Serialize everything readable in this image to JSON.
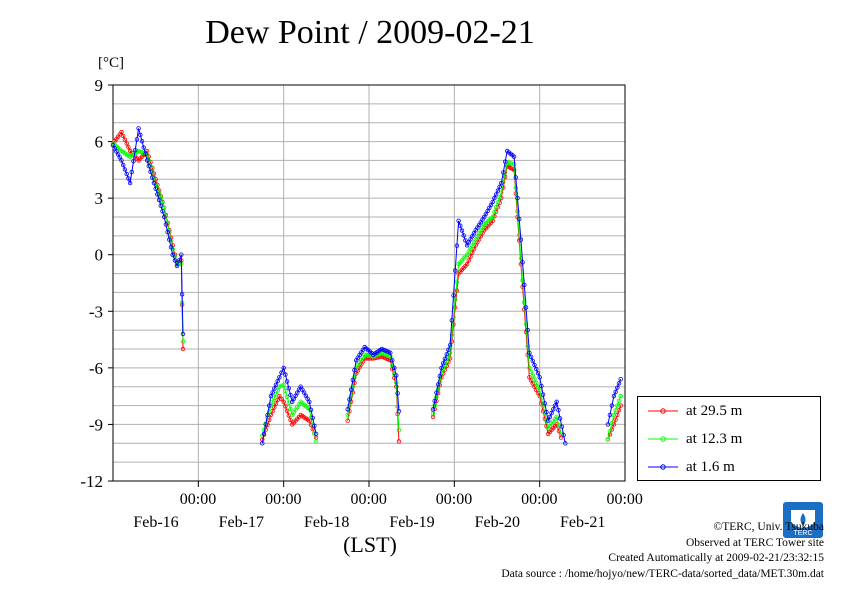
{
  "chart_data": {
    "type": "line",
    "title": "Dew Point / 2009-02-21",
    "ylabel": "[°C]",
    "xlabel": "(LST)",
    "ylim": [
      -12,
      9
    ],
    "yticks": [
      "9",
      "6",
      "3",
      "0",
      "-3",
      "-6",
      "-9",
      "-12"
    ],
    "xticks": [
      {
        "time": "00:00",
        "date": "Feb-16"
      },
      {
        "time": "00:00",
        "date": "Feb-17"
      },
      {
        "time": "00:00",
        "date": "Feb-18"
      },
      {
        "time": "00:00",
        "date": "Feb-19"
      },
      {
        "time": "00:00",
        "date": "Feb-20"
      },
      {
        "time": "00:00",
        "date": "Feb-21"
      }
    ],
    "xlim_days": [
      15.0,
      21.0
    ],
    "grid": true,
    "legend_position": "bottom-right",
    "series": [
      {
        "name": "at 29.5 m",
        "color": "#ff0000",
        "segments": [
          [
            [
              15.0,
              5.9
            ],
            [
              15.1,
              6.5
            ],
            [
              15.2,
              5.5
            ],
            [
              15.3,
              5.0
            ],
            [
              15.4,
              5.5
            ],
            [
              15.5,
              4.0
            ],
            [
              15.6,
              2.5
            ],
            [
              15.7,
              0.5
            ],
            [
              15.75,
              -0.5
            ],
            [
              15.8,
              -0.3
            ],
            [
              15.82,
              -5.0
            ]
          ],
          [
            [
              16.75,
              -9.8
            ],
            [
              16.85,
              -8.5
            ],
            [
              16.95,
              -7.5
            ],
            [
              17.0,
              -7.8
            ],
            [
              17.1,
              -9.0
            ],
            [
              17.2,
              -8.5
            ],
            [
              17.3,
              -8.8
            ],
            [
              17.38,
              -9.7
            ]
          ],
          [
            [
              17.75,
              -8.8
            ],
            [
              17.85,
              -6.3
            ],
            [
              17.95,
              -5.5
            ],
            [
              18.05,
              -5.5
            ],
            [
              18.15,
              -5.4
            ],
            [
              18.25,
              -5.6
            ],
            [
              18.32,
              -7.0
            ],
            [
              18.35,
              -9.9
            ]
          ],
          [
            [
              18.75,
              -8.6
            ],
            [
              18.85,
              -6.5
            ],
            [
              18.95,
              -5.5
            ],
            [
              19.05,
              -1.0
            ],
            [
              19.15,
              -0.5
            ],
            [
              19.25,
              0.5
            ],
            [
              19.35,
              1.3
            ],
            [
              19.45,
              1.8
            ],
            [
              19.55,
              3.0
            ],
            [
              19.62,
              4.7
            ],
            [
              19.7,
              4.5
            ],
            [
              19.78,
              -0.5
            ],
            [
              19.88,
              -6.5
            ],
            [
              20.0,
              -7.5
            ],
            [
              20.1,
              -9.5
            ],
            [
              20.2,
              -9.0
            ],
            [
              20.25,
              -9.7
            ]
          ],
          [
            [
              20.8,
              -9.8
            ],
            [
              20.87,
              -9.0
            ],
            [
              20.95,
              -8.0
            ]
          ]
        ]
      },
      {
        "name": "at 12.3 m",
        "color": "#00ff00",
        "segments": [
          [
            [
              15.0,
              5.9
            ],
            [
              15.1,
              5.5
            ],
            [
              15.2,
              5.2
            ],
            [
              15.3,
              5.5
            ],
            [
              15.4,
              5.3
            ],
            [
              15.5,
              3.8
            ],
            [
              15.6,
              2.5
            ],
            [
              15.7,
              0.3
            ],
            [
              15.75,
              -0.5
            ],
            [
              15.8,
              -0.5
            ],
            [
              15.82,
              -4.6
            ]
          ],
          [
            [
              16.75,
              -9.6
            ],
            [
              16.85,
              -8.0
            ],
            [
              16.95,
              -7.0
            ],
            [
              17.0,
              -6.9
            ],
            [
              17.1,
              -8.5
            ],
            [
              17.2,
              -7.8
            ],
            [
              17.3,
              -8.2
            ],
            [
              17.38,
              -9.9
            ]
          ],
          [
            [
              17.75,
              -8.5
            ],
            [
              17.85,
              -6.0
            ],
            [
              17.95,
              -5.3
            ],
            [
              18.05,
              -5.4
            ],
            [
              18.15,
              -5.2
            ],
            [
              18.25,
              -5.4
            ],
            [
              18.32,
              -6.8
            ],
            [
              18.35,
              -9.3
            ]
          ],
          [
            [
              18.75,
              -8.4
            ],
            [
              18.85,
              -6.3
            ],
            [
              18.95,
              -5.2
            ],
            [
              19.05,
              -0.5
            ],
            [
              19.15,
              0.0
            ],
            [
              19.25,
              0.8
            ],
            [
              19.35,
              1.6
            ],
            [
              19.45,
              2.0
            ],
            [
              19.55,
              3.3
            ],
            [
              19.62,
              4.9
            ],
            [
              19.7,
              4.8
            ],
            [
              19.78,
              -0.2
            ],
            [
              19.88,
              -6.0
            ],
            [
              20.0,
              -7.2
            ],
            [
              20.1,
              -9.2
            ],
            [
              20.2,
              -8.6
            ],
            [
              20.25,
              -9.5
            ]
          ],
          [
            [
              20.8,
              -9.8
            ],
            [
              20.87,
              -8.5
            ],
            [
              20.95,
              -7.5
            ]
          ]
        ]
      },
      {
        "name": "at 1.6 m",
        "color": "#0000ff",
        "segments": [
          [
            [
              15.0,
              5.8
            ],
            [
              15.1,
              5.0
            ],
            [
              15.2,
              3.8
            ],
            [
              15.3,
              6.7
            ],
            [
              15.4,
              5.0
            ],
            [
              15.5,
              3.5
            ],
            [
              15.6,
              2.0
            ],
            [
              15.7,
              0.0
            ],
            [
              15.75,
              -0.6
            ],
            [
              15.8,
              0.0
            ],
            [
              15.82,
              -4.2
            ]
          ],
          [
            [
              16.75,
              -10.0
            ],
            [
              16.85,
              -7.5
            ],
            [
              16.95,
              -6.5
            ],
            [
              17.0,
              -6.0
            ],
            [
              17.1,
              -7.8
            ],
            [
              17.2,
              -7.0
            ],
            [
              17.3,
              -7.8
            ],
            [
              17.38,
              -9.5
            ]
          ],
          [
            [
              17.75,
              -8.2
            ],
            [
              17.85,
              -5.6
            ],
            [
              17.95,
              -4.9
            ],
            [
              18.05,
              -5.3
            ],
            [
              18.15,
              -5.0
            ],
            [
              18.25,
              -5.2
            ],
            [
              18.32,
              -6.4
            ],
            [
              18.35,
              -8.3
            ]
          ],
          [
            [
              18.75,
              -8.2
            ],
            [
              18.85,
              -6.0
            ],
            [
              18.95,
              -4.8
            ],
            [
              19.05,
              1.8
            ],
            [
              19.15,
              0.5
            ],
            [
              19.25,
              1.3
            ],
            [
              19.35,
              2.0
            ],
            [
              19.45,
              2.8
            ],
            [
              19.55,
              3.8
            ],
            [
              19.62,
              5.5
            ],
            [
              19.7,
              5.2
            ],
            [
              19.78,
              0.8
            ],
            [
              19.88,
              -5.2
            ],
            [
              20.0,
              -6.5
            ],
            [
              20.1,
              -8.8
            ],
            [
              20.2,
              -7.8
            ],
            [
              20.3,
              -10.0
            ]
          ],
          [
            [
              20.8,
              -9.0
            ],
            [
              20.87,
              -7.5
            ],
            [
              20.95,
              -6.6
            ]
          ]
        ]
      }
    ]
  },
  "credits": {
    "copyright": "©TERC, Univ. Tsukuba",
    "observed": "Observed at TERC Tower site",
    "created": "Created Automatically at 2009-02-21/23:32:15",
    "source": "Data source : /home/hojyo/new/TERC-data/sorted_data/MET.30m.dat"
  },
  "logo_text": "TERC"
}
